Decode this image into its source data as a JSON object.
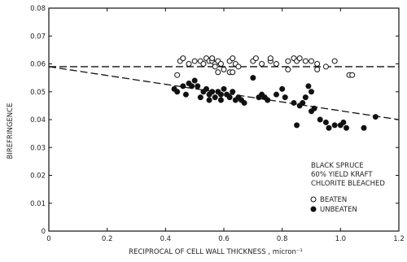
{
  "chart_data": {
    "type": "scatter",
    "title": "",
    "xlabel": "RECIPROCAL OF CELL WALL THICKNESS , micron⁻¹",
    "ylabel": "BIREFRINGENCE",
    "xlim": [
      0,
      1.2
    ],
    "ylim": [
      0,
      0.08
    ],
    "xticks": [
      0,
      0.2,
      0.4,
      0.6,
      0.8,
      1.0,
      1.2
    ],
    "xtick_labels": [
      "0",
      "0.2",
      "0.4",
      "0.6",
      "0.8",
      "1.0",
      "1.2"
    ],
    "yticks": [
      0,
      0.01,
      0.02,
      0.03,
      0.04,
      0.05,
      0.06,
      0.07,
      0.08
    ],
    "ytick_labels": [
      "0",
      "0.01",
      "0.02",
      "0.03",
      "0.04",
      "0.05",
      "0.06",
      "0.07",
      "0.08"
    ],
    "grid": false,
    "legend_placement": "right",
    "annotation_lines": [
      "BLACK SPRUCE",
      "60% YIELD KRAFT",
      "CHLORITE BLEACHED"
    ],
    "series": [
      {
        "name": "BEATEN",
        "marker": "open-circle",
        "points": [
          [
            0.45,
            0.061
          ],
          [
            0.46,
            0.062
          ],
          [
            0.48,
            0.06
          ],
          [
            0.5,
            0.061
          ],
          [
            0.52,
            0.061
          ],
          [
            0.53,
            0.06
          ],
          [
            0.54,
            0.062
          ],
          [
            0.55,
            0.061
          ],
          [
            0.56,
            0.061
          ],
          [
            0.56,
            0.062
          ],
          [
            0.57,
            0.06
          ],
          [
            0.57,
            0.059
          ],
          [
            0.58,
            0.061
          ],
          [
            0.59,
            0.06
          ],
          [
            0.58,
            0.057
          ],
          [
            0.6,
            0.058
          ],
          [
            0.62,
            0.061
          ],
          [
            0.63,
            0.062
          ],
          [
            0.64,
            0.06
          ],
          [
            0.65,
            0.059
          ],
          [
            0.62,
            0.057
          ],
          [
            0.63,
            0.057
          ],
          [
            0.7,
            0.061
          ],
          [
            0.71,
            0.062
          ],
          [
            0.73,
            0.06
          ],
          [
            0.76,
            0.061
          ],
          [
            0.76,
            0.062
          ],
          [
            0.78,
            0.06
          ],
          [
            0.82,
            0.061
          ],
          [
            0.82,
            0.058
          ],
          [
            0.84,
            0.062
          ],
          [
            0.85,
            0.061
          ],
          [
            0.86,
            0.062
          ],
          [
            0.88,
            0.061
          ],
          [
            0.9,
            0.061
          ],
          [
            0.92,
            0.06
          ],
          [
            0.92,
            0.058
          ],
          [
            0.95,
            0.059
          ],
          [
            0.98,
            0.061
          ],
          [
            1.03,
            0.056
          ],
          [
            1.04,
            0.056
          ],
          [
            0.44,
            0.056
          ]
        ]
      },
      {
        "name": "UNBEATEN",
        "marker": "filled-circle",
        "points": [
          [
            0.43,
            0.051
          ],
          [
            0.44,
            0.05
          ],
          [
            0.46,
            0.052
          ],
          [
            0.47,
            0.049
          ],
          [
            0.48,
            0.053
          ],
          [
            0.49,
            0.052
          ],
          [
            0.5,
            0.054
          ],
          [
            0.51,
            0.052
          ],
          [
            0.52,
            0.048
          ],
          [
            0.53,
            0.05
          ],
          [
            0.54,
            0.051
          ],
          [
            0.55,
            0.049
          ],
          [
            0.55,
            0.047
          ],
          [
            0.56,
            0.05
          ],
          [
            0.57,
            0.048
          ],
          [
            0.58,
            0.05
          ],
          [
            0.59,
            0.049
          ],
          [
            0.59,
            0.047
          ],
          [
            0.6,
            0.051
          ],
          [
            0.61,
            0.049
          ],
          [
            0.62,
            0.048
          ],
          [
            0.63,
            0.05
          ],
          [
            0.64,
            0.047
          ],
          [
            0.65,
            0.048
          ],
          [
            0.66,
            0.047
          ],
          [
            0.67,
            0.046
          ],
          [
            0.7,
            0.055
          ],
          [
            0.72,
            0.048
          ],
          [
            0.73,
            0.049
          ],
          [
            0.74,
            0.048
          ],
          [
            0.75,
            0.047
          ],
          [
            0.78,
            0.049
          ],
          [
            0.8,
            0.051
          ],
          [
            0.81,
            0.048
          ],
          [
            0.84,
            0.046
          ],
          [
            0.86,
            0.045
          ],
          [
            0.87,
            0.046
          ],
          [
            0.88,
            0.048
          ],
          [
            0.89,
            0.052
          ],
          [
            0.9,
            0.043
          ],
          [
            0.85,
            0.038
          ],
          [
            0.93,
            0.04
          ],
          [
            0.95,
            0.039
          ],
          [
            0.96,
            0.037
          ],
          [
            0.98,
            0.038
          ],
          [
            1.0,
            0.038
          ],
          [
            1.01,
            0.039
          ],
          [
            1.02,
            0.037
          ],
          [
            1.08,
            0.037
          ],
          [
            1.12,
            0.041
          ],
          [
            0.9,
            0.05
          ],
          [
            0.91,
            0.044
          ]
        ]
      }
    ],
    "reference_lines": [
      {
        "style": "dashed",
        "from": [
          0,
          0.059
        ],
        "to": [
          1.2,
          0.059
        ]
      },
      {
        "style": "dashed",
        "from": [
          0,
          0.059
        ],
        "to": [
          1.2,
          0.04
        ]
      }
    ]
  }
}
